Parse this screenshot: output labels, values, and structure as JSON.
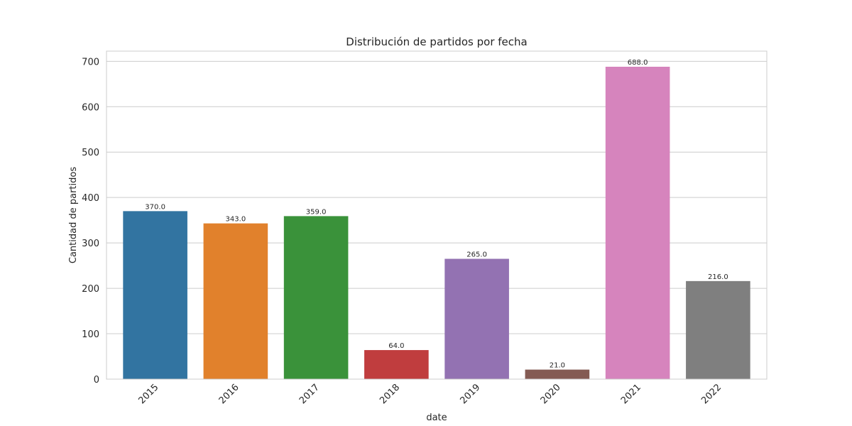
{
  "chart_data": {
    "type": "bar",
    "title": "Distribución de partidos por fecha",
    "xlabel": "date",
    "ylabel": "Cantidad de partidos",
    "categories": [
      "2015",
      "2016",
      "2017",
      "2018",
      "2019",
      "2020",
      "2021",
      "2022"
    ],
    "values": [
      370.0,
      343.0,
      359.0,
      64.0,
      265.0,
      21.0,
      688.0,
      216.0
    ],
    "value_labels": [
      "370.0",
      "343.0",
      "359.0",
      "64.0",
      "265.0",
      "21.0",
      "688.0",
      "216.0"
    ],
    "colors": [
      "#3274a1",
      "#e1812c",
      "#3a923a",
      "#c03d3e",
      "#9372b2",
      "#845b53",
      "#d684bd",
      "#7f7f7f"
    ],
    "yticks": [
      0,
      100,
      200,
      300,
      400,
      500,
      600,
      700
    ],
    "ylim": [
      0,
      722.4
    ],
    "grid": true,
    "legend": "none"
  }
}
